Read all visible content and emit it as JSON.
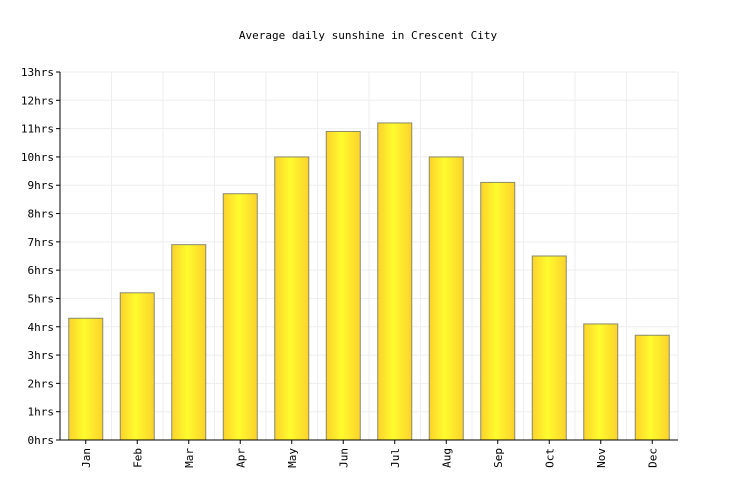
{
  "chart_data": {
    "type": "bar",
    "title": "Average daily sunshine in Crescent City",
    "xlabel": "",
    "ylabel": "",
    "categories": [
      "Jan",
      "Feb",
      "Mar",
      "Apr",
      "May",
      "Jun",
      "Jul",
      "Aug",
      "Sep",
      "Oct",
      "Nov",
      "Dec"
    ],
    "values": [
      4.3,
      5.2,
      6.9,
      8.7,
      10.0,
      10.9,
      11.2,
      10.0,
      9.1,
      6.5,
      4.1,
      3.7
    ],
    "unit": "hrs",
    "ylim": [
      0,
      13
    ],
    "yticks": [
      "0hrs",
      "1hrs",
      "2hrs",
      "3hrs",
      "4hrs",
      "5hrs",
      "6hrs",
      "7hrs",
      "8hrs",
      "9hrs",
      "10hrs",
      "11hrs",
      "12hrs",
      "13hrs"
    ],
    "grid": true,
    "legend": "none",
    "colors": {
      "bar_light": "#fffb2e",
      "bar_dark": "#fbd22b",
      "bar_stroke": "#8a8a6a",
      "grid": "#eeeeee",
      "axis": "#000000"
    }
  }
}
